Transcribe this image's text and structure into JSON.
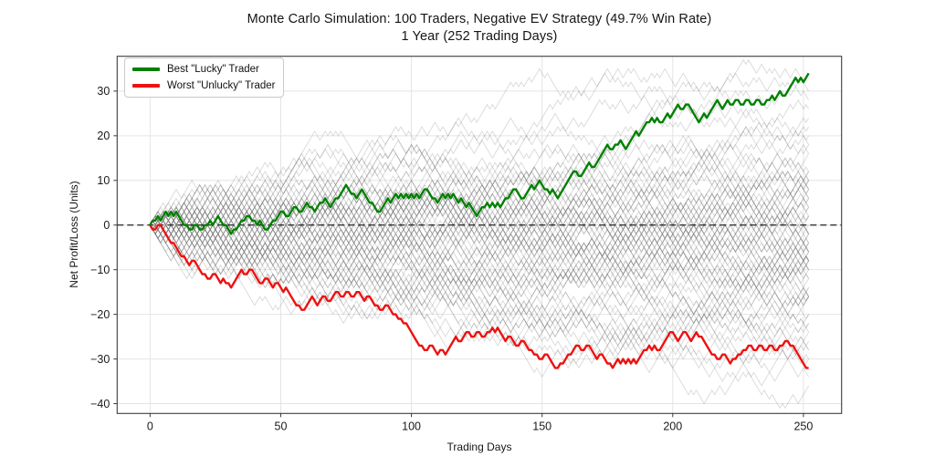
{
  "title": {
    "line1": "Monte Carlo Simulation: 100 Traders, Negative EV Strategy (49.7% Win Rate)",
    "line2": "1 Year (252 Trading Days)"
  },
  "axes": {
    "xlabel": "Trading Days",
    "ylabel": "Net Profit/Loss (Units)",
    "xticks": [
      0,
      50,
      100,
      150,
      200,
      250
    ],
    "yticks": [
      30,
      20,
      10,
      0,
      -10,
      -20,
      -30,
      -40
    ]
  },
  "legend": {
    "items": [
      {
        "label": "Best \"Lucky\" Trader",
        "color": "#008000"
      },
      {
        "label": "Worst \"Unlucky\" Trader",
        "color": "#ee1111"
      }
    ]
  },
  "chart_data": {
    "type": "line",
    "title": "Monte Carlo Simulation: 100 Traders, Negative EV Strategy (49.7% Win Rate) — 1 Year (252 Trading Days)",
    "xlabel": "Trading Days",
    "ylabel": "Net Profit/Loss (Units)",
    "xlim": [
      -12.6,
      264.6
    ],
    "ylim": [
      -42.2,
      37.8
    ],
    "grid": true,
    "legend_position": "upper left",
    "zero_line": 0,
    "num_traders": 100,
    "trading_days": 252,
    "win_rate_percent": 49.7,
    "background_paths": {
      "count": 98,
      "win_prob": 0.497,
      "step_size": 1,
      "color": "#808080",
      "opacity": 0.3,
      "stroke_width": 0.9,
      "seed": 11
    },
    "series": [
      {
        "name": "Best \"Lucky\" Trader",
        "color": "#008000",
        "width": 2.4,
        "final_value": 34,
        "keypoints": [
          [
            0,
            0
          ],
          [
            2,
            1
          ],
          [
            6,
            3
          ],
          [
            9,
            2
          ],
          [
            12,
            1
          ],
          [
            14,
            0
          ],
          [
            16,
            -1
          ],
          [
            18,
            0
          ],
          [
            20,
            -1
          ],
          [
            22,
            0
          ],
          [
            26,
            2
          ],
          [
            29,
            0
          ],
          [
            31,
            -2
          ],
          [
            33,
            -1
          ],
          [
            36,
            1
          ],
          [
            38,
            2
          ],
          [
            40,
            1
          ],
          [
            43,
            0
          ],
          [
            45,
            -1
          ],
          [
            48,
            1
          ],
          [
            51,
            3
          ],
          [
            53,
            2
          ],
          [
            56,
            4
          ],
          [
            58,
            3
          ],
          [
            60,
            5
          ],
          [
            62,
            4
          ],
          [
            66,
            5
          ],
          [
            69,
            4
          ],
          [
            72,
            6
          ],
          [
            75,
            9
          ],
          [
            78,
            7
          ],
          [
            81,
            8
          ],
          [
            85,
            5
          ],
          [
            88,
            3
          ],
          [
            91,
            6
          ],
          [
            94,
            7
          ],
          [
            97,
            6
          ],
          [
            100,
            7
          ],
          [
            103,
            6
          ],
          [
            106,
            8
          ],
          [
            109,
            6
          ],
          [
            112,
            7
          ],
          [
            115,
            6
          ],
          [
            118,
            5
          ],
          [
            121,
            4
          ],
          [
            125,
            2
          ],
          [
            128,
            4
          ],
          [
            131,
            5
          ],
          [
            134,
            4
          ],
          [
            137,
            6
          ],
          [
            140,
            8
          ],
          [
            143,
            6
          ],
          [
            146,
            9
          ],
          [
            149,
            10
          ],
          [
            152,
            8
          ],
          [
            156,
            6
          ],
          [
            160,
            10
          ],
          [
            163,
            12
          ],
          [
            165,
            11
          ],
          [
            168,
            14
          ],
          [
            170,
            13
          ],
          [
            173,
            16
          ],
          [
            175,
            18
          ],
          [
            177,
            17
          ],
          [
            179,
            18
          ],
          [
            182,
            17
          ],
          [
            184,
            19
          ],
          [
            186,
            21
          ],
          [
            188,
            21
          ],
          [
            191,
            23
          ],
          [
            194,
            24
          ],
          [
            196,
            23
          ],
          [
            198,
            25
          ],
          [
            199,
            24
          ],
          [
            202,
            27
          ],
          [
            204,
            26
          ],
          [
            206,
            27
          ],
          [
            210,
            23
          ],
          [
            212,
            25
          ],
          [
            213,
            24
          ],
          [
            217,
            28
          ],
          [
            219,
            26
          ],
          [
            221,
            28
          ],
          [
            223,
            27
          ],
          [
            225,
            28
          ],
          [
            227,
            27
          ],
          [
            229,
            28
          ],
          [
            231,
            27
          ],
          [
            233,
            28
          ],
          [
            235,
            27
          ],
          [
            237,
            28
          ],
          [
            241,
            30
          ],
          [
            243,
            29
          ],
          [
            247,
            33
          ],
          [
            248,
            32
          ],
          [
            252,
            34
          ]
        ]
      },
      {
        "name": "Worst \"Unlucky\" Trader",
        "color": "#ee1111",
        "width": 2.4,
        "final_value": -32,
        "keypoints": [
          [
            0,
            0
          ],
          [
            2,
            -1
          ],
          [
            4,
            0
          ],
          [
            7,
            -3
          ],
          [
            9,
            -4
          ],
          [
            11,
            -6
          ],
          [
            13,
            -7
          ],
          [
            15,
            -9
          ],
          [
            17,
            -8
          ],
          [
            19,
            -10
          ],
          [
            21,
            -11
          ],
          [
            23,
            -12
          ],
          [
            25,
            -11
          ],
          [
            27,
            -13
          ],
          [
            30,
            -13
          ],
          [
            33,
            -12
          ],
          [
            35,
            -10
          ],
          [
            37,
            -11
          ],
          [
            39,
            -10
          ],
          [
            41,
            -12
          ],
          [
            43,
            -13
          ],
          [
            45,
            -12
          ],
          [
            47,
            -14
          ],
          [
            49,
            -13
          ],
          [
            51,
            -15
          ],
          [
            53,
            -15
          ],
          [
            55,
            -17
          ],
          [
            57,
            -18
          ],
          [
            59,
            -19
          ],
          [
            62,
            -16
          ],
          [
            64,
            -18
          ],
          [
            67,
            -16
          ],
          [
            69,
            -17
          ],
          [
            72,
            -15
          ],
          [
            74,
            -16
          ],
          [
            76,
            -15
          ],
          [
            78,
            -16
          ],
          [
            80,
            -15
          ],
          [
            82,
            -17
          ],
          [
            84,
            -16
          ],
          [
            87,
            -18
          ],
          [
            89,
            -19
          ],
          [
            91,
            -18
          ],
          [
            94,
            -20
          ],
          [
            96,
            -21
          ],
          [
            98,
            -22
          ],
          [
            101,
            -25
          ],
          [
            104,
            -27
          ],
          [
            106,
            -28
          ],
          [
            108,
            -27
          ],
          [
            110,
            -29
          ],
          [
            112,
            -28
          ],
          [
            113,
            -29
          ],
          [
            117,
            -25
          ],
          [
            119,
            -26
          ],
          [
            122,
            -24
          ],
          [
            124,
            -25
          ],
          [
            126,
            -24
          ],
          [
            128,
            -25
          ],
          [
            130,
            -24
          ],
          [
            133,
            -23
          ],
          [
            136,
            -26
          ],
          [
            138,
            -25
          ],
          [
            141,
            -27
          ],
          [
            143,
            -26
          ],
          [
            146,
            -28
          ],
          [
            148,
            -29
          ],
          [
            150,
            -30
          ],
          [
            152,
            -29
          ],
          [
            156,
            -32
          ],
          [
            158,
            -31
          ],
          [
            161,
            -29
          ],
          [
            164,
            -27
          ],
          [
            166,
            -28
          ],
          [
            168,
            -27
          ],
          [
            171,
            -30
          ],
          [
            173,
            -29
          ],
          [
            176,
            -31
          ],
          [
            179,
            -30
          ],
          [
            182,
            -31
          ],
          [
            185,
            -30
          ],
          [
            188,
            -29
          ],
          [
            190,
            -28
          ],
          [
            193,
            -27
          ],
          [
            195,
            -28
          ],
          [
            197,
            -26
          ],
          [
            200,
            -24
          ],
          [
            202,
            -26
          ],
          [
            205,
            -24
          ],
          [
            207,
            -26
          ],
          [
            209,
            -24
          ],
          [
            211,
            -25
          ],
          [
            214,
            -28
          ],
          [
            216,
            -29
          ],
          [
            218,
            -30
          ],
          [
            220,
            -29
          ],
          [
            222,
            -31
          ],
          [
            224,
            -30
          ],
          [
            226,
            -29
          ],
          [
            228,
            -28
          ],
          [
            230,
            -27
          ],
          [
            232,
            -28
          ],
          [
            234,
            -27
          ],
          [
            236,
            -28
          ],
          [
            238,
            -27
          ],
          [
            240,
            -28
          ],
          [
            242,
            -27
          ],
          [
            244,
            -26
          ],
          [
            246,
            -27
          ],
          [
            252,
            -32
          ]
        ]
      }
    ]
  }
}
